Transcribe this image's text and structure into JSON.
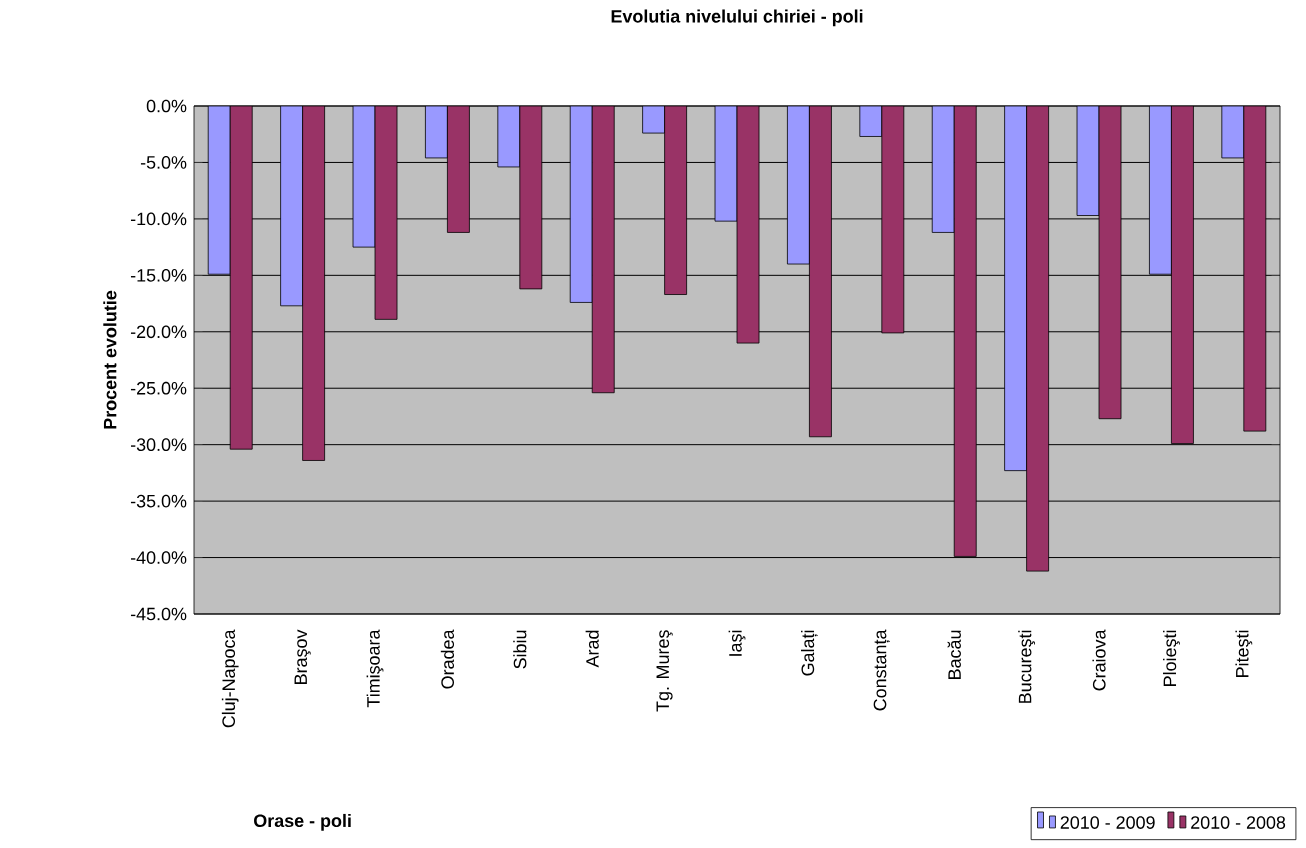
{
  "chart_data": {
    "type": "bar",
    "title": "Evolutia nivelului chiriei - poli",
    "xlabel": "Orase - poli",
    "ylabel": "Procent evolutie",
    "categories": [
      "Cluj-Napoca",
      "Braşov",
      "Timişoara",
      "Oradea",
      "Sibiu",
      "Arad",
      "Tg. Mureş",
      "Iaşi",
      "Galați",
      "Constanța",
      "Bacău",
      "Bucureşti",
      "Craiova",
      "Ploieşti",
      "Piteşti"
    ],
    "series": [
      {
        "name": "2010 - 2009",
        "color": "#9999ff",
        "values": [
          -14.9,
          -17.7,
          -12.5,
          -4.6,
          -5.4,
          -17.4,
          -2.4,
          -10.2,
          -14.0,
          -2.7,
          -11.2,
          -32.3,
          -9.7,
          -14.9,
          -4.6
        ]
      },
      {
        "name": "2010 - 2008",
        "color": "#993366",
        "values": [
          -30.4,
          -31.4,
          -18.9,
          -11.2,
          -16.2,
          -25.4,
          -16.7,
          -21.0,
          -29.3,
          -20.1,
          -39.9,
          -41.2,
          -27.7,
          -29.9,
          -28.8
        ]
      }
    ],
    "ylim": [
      -45,
      0
    ],
    "yticks": [
      {
        "value": 0,
        "label": "0.0%"
      },
      {
        "value": -5,
        "label": "-5.0%"
      },
      {
        "value": -10,
        "label": "-10.0%"
      },
      {
        "value": -15,
        "label": "-15.0%"
      },
      {
        "value": -20,
        "label": "-20.0%"
      },
      {
        "value": -25,
        "label": "-25.0%"
      },
      {
        "value": -30,
        "label": "-30.0%"
      },
      {
        "value": -35,
        "label": "-35.0%"
      },
      {
        "value": -40,
        "label": "-40.0%"
      },
      {
        "value": -45,
        "label": "-45.0%"
      }
    ],
    "grid": "y",
    "legend": "bottom right"
  }
}
